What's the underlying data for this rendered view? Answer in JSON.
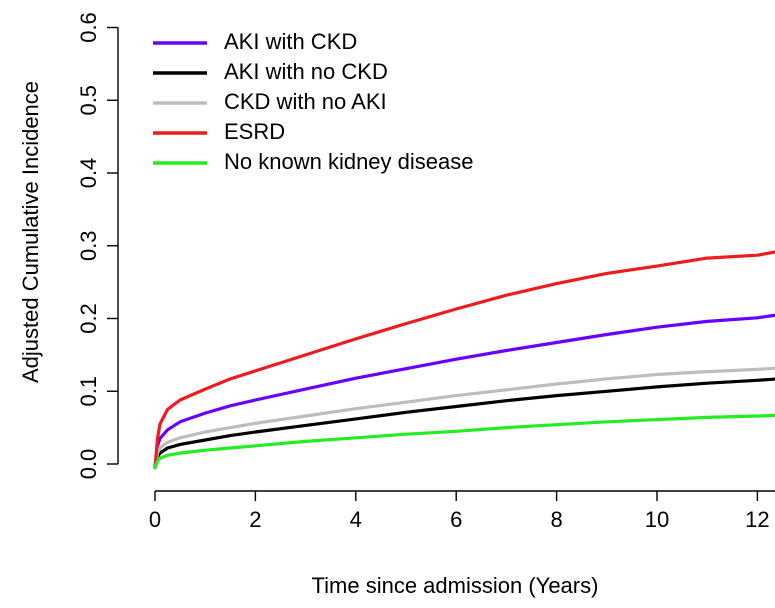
{
  "chart_data": {
    "type": "line",
    "xlabel": "Time since admission (Years)",
    "ylabel": "Adjusted Cumulative Incidence",
    "xlim": [
      0,
      12.4
    ],
    "ylim": [
      0,
      0.6
    ],
    "x_ticks": [
      0,
      2,
      4,
      6,
      8,
      10,
      12
    ],
    "x_tick_labels": [
      "0",
      "2",
      "4",
      "6",
      "8",
      "10",
      "12"
    ],
    "y_ticks": [
      0,
      0.1,
      0.2,
      0.3,
      0.4,
      0.5,
      0.6
    ],
    "y_tick_labels": [
      "0.0",
      "0.1",
      "0.2",
      "0.3",
      "0.4",
      "0.5",
      "0.6"
    ],
    "grid": false,
    "legend_position": "top-left",
    "series": [
      {
        "name": "AKI with CKD",
        "color": "#6a00ff",
        "x": [
          0,
          0.05,
          0.1,
          0.25,
          0.5,
          1,
          1.5,
          2,
          3,
          4,
          5,
          6,
          7,
          8,
          9,
          10,
          11,
          12,
          12.4
        ],
        "y": [
          -0.005,
          0.025,
          0.035,
          0.047,
          0.058,
          0.07,
          0.08,
          0.088,
          0.103,
          0.118,
          0.131,
          0.144,
          0.156,
          0.167,
          0.178,
          0.188,
          0.196,
          0.201,
          0.205
        ]
      },
      {
        "name": "AKI with no CKD",
        "color": "#000000",
        "x": [
          0,
          0.05,
          0.1,
          0.25,
          0.5,
          1,
          1.5,
          2,
          3,
          4,
          5,
          6,
          7,
          8,
          9,
          10,
          11,
          12,
          12.4
        ],
        "y": [
          -0.005,
          0.01,
          0.015,
          0.022,
          0.027,
          0.033,
          0.039,
          0.044,
          0.053,
          0.062,
          0.071,
          0.079,
          0.087,
          0.094,
          0.1,
          0.106,
          0.111,
          0.115,
          0.117
        ]
      },
      {
        "name": "CKD with no AKI",
        "color": "#bdbdbd",
        "x": [
          0,
          0.05,
          0.1,
          0.25,
          0.5,
          1,
          1.5,
          2,
          3,
          4,
          5,
          6,
          7,
          8,
          9,
          10,
          11,
          12,
          12.4
        ],
        "y": [
          -0.005,
          0.015,
          0.022,
          0.03,
          0.036,
          0.044,
          0.05,
          0.056,
          0.066,
          0.076,
          0.085,
          0.094,
          0.102,
          0.11,
          0.117,
          0.123,
          0.127,
          0.13,
          0.132
        ]
      },
      {
        "name": "ESRD",
        "color": "#ee1c1c",
        "x": [
          0,
          0.05,
          0.1,
          0.25,
          0.5,
          1,
          1.5,
          2,
          3,
          4,
          5,
          6,
          7,
          8,
          9,
          10,
          11,
          12,
          12.4
        ],
        "y": [
          -0.005,
          0.035,
          0.055,
          0.075,
          0.088,
          0.103,
          0.117,
          0.128,
          0.15,
          0.172,
          0.193,
          0.213,
          0.232,
          0.248,
          0.262,
          0.272,
          0.283,
          0.287,
          0.292
        ]
      },
      {
        "name": "No known kidney disease",
        "color": "#22ee22",
        "x": [
          0,
          0.05,
          0.1,
          0.25,
          0.5,
          1,
          1.5,
          2,
          3,
          4,
          5,
          6,
          7,
          8,
          9,
          10,
          11,
          12,
          12.4
        ],
        "y": [
          -0.005,
          0.004,
          0.008,
          0.012,
          0.015,
          0.019,
          0.022,
          0.025,
          0.031,
          0.036,
          0.041,
          0.045,
          0.05,
          0.054,
          0.058,
          0.061,
          0.064,
          0.066,
          0.067
        ]
      }
    ]
  }
}
